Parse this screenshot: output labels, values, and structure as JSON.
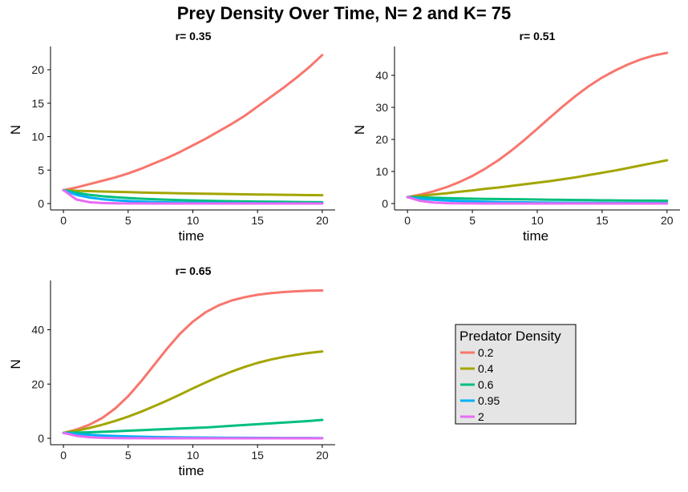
{
  "title": "Prey Density Over Time, N= 2 and K= 75",
  "chart_data": [
    {
      "type": "line",
      "panel_title": "r= 0.35",
      "xlabel": "time",
      "ylabel": "N",
      "xlim": [
        0,
        20
      ],
      "ylim": [
        0,
        23
      ],
      "xticks": [
        0,
        5,
        10,
        15,
        20
      ],
      "yticks": [
        0,
        5,
        10,
        15,
        20
      ],
      "x": [
        0,
        1,
        2,
        3,
        4,
        5,
        6,
        7,
        8,
        9,
        10,
        11,
        12,
        13,
        14,
        15,
        16,
        17,
        18,
        19,
        20
      ],
      "series": [
        {
          "name": "0.2",
          "values": [
            2.0,
            2.4,
            2.9,
            3.4,
            3.9,
            4.5,
            5.2,
            6.0,
            6.8,
            7.7,
            8.7,
            9.7,
            10.8,
            11.9,
            13.1,
            14.5,
            15.9,
            17.3,
            18.8,
            20.4,
            22.2
          ]
        },
        {
          "name": "0.4",
          "values": [
            2.0,
            1.9,
            1.85,
            1.8,
            1.75,
            1.7,
            1.65,
            1.6,
            1.57,
            1.53,
            1.5,
            1.47,
            1.44,
            1.41,
            1.38,
            1.35,
            1.33,
            1.3,
            1.28,
            1.26,
            1.24
          ]
        },
        {
          "name": "0.6",
          "values": [
            2.0,
            1.6,
            1.3,
            1.1,
            0.95,
            0.82,
            0.72,
            0.64,
            0.57,
            0.51,
            0.46,
            0.42,
            0.38,
            0.35,
            0.32,
            0.29,
            0.27,
            0.25,
            0.23,
            0.21,
            0.2
          ]
        },
        {
          "name": "0.95",
          "values": [
            2.0,
            1.3,
            0.9,
            0.65,
            0.48,
            0.37,
            0.29,
            0.23,
            0.18,
            0.15,
            0.12,
            0.1,
            0.08,
            0.07,
            0.06,
            0.05,
            0.04,
            0.04,
            0.03,
            0.03,
            0.02
          ]
        },
        {
          "name": "2",
          "values": [
            2.0,
            0.6,
            0.2,
            0.07,
            0.03,
            0.01,
            0.01,
            0,
            0,
            0,
            0,
            0,
            0,
            0,
            0,
            0,
            0,
            0,
            0,
            0,
            0
          ]
        }
      ]
    },
    {
      "type": "line",
      "panel_title": "r= 0.51",
      "xlabel": "time",
      "ylabel": "N",
      "xlim": [
        0,
        20
      ],
      "ylim": [
        0,
        48
      ],
      "xticks": [
        0,
        5,
        10,
        15,
        20
      ],
      "yticks": [
        0,
        10,
        20,
        30,
        40
      ],
      "x": [
        0,
        1,
        2,
        3,
        4,
        5,
        6,
        7,
        8,
        9,
        10,
        11,
        12,
        13,
        14,
        15,
        16,
        17,
        18,
        19,
        20
      ],
      "series": [
        {
          "name": "0.2",
          "values": [
            2.0,
            2.8,
            3.8,
            5.1,
            6.7,
            8.6,
            10.9,
            13.5,
            16.5,
            19.8,
            23.3,
            26.9,
            30.4,
            33.7,
            36.7,
            39.3,
            41.5,
            43.4,
            45.0,
            46.2,
            47.0
          ]
        },
        {
          "name": "0.4",
          "values": [
            2.0,
            2.4,
            2.8,
            3.2,
            3.7,
            4.1,
            4.6,
            5.0,
            5.5,
            6.0,
            6.5,
            7.0,
            7.6,
            8.2,
            8.9,
            9.6,
            10.3,
            11.1,
            11.9,
            12.7,
            13.5
          ]
        },
        {
          "name": "0.6",
          "values": [
            2.0,
            1.9,
            1.8,
            1.7,
            1.6,
            1.5,
            1.45,
            1.4,
            1.35,
            1.3,
            1.25,
            1.2,
            1.15,
            1.1,
            1.05,
            1.0,
            0.98,
            0.95,
            0.92,
            0.9,
            0.88
          ]
        },
        {
          "name": "0.95",
          "values": [
            2.0,
            1.5,
            1.2,
            0.95,
            0.78,
            0.65,
            0.55,
            0.47,
            0.41,
            0.36,
            0.32,
            0.28,
            0.25,
            0.22,
            0.2,
            0.18,
            0.16,
            0.15,
            0.14,
            0.13,
            0.12
          ]
        },
        {
          "name": "2",
          "values": [
            2.0,
            0.8,
            0.3,
            0.12,
            0.05,
            0.02,
            0.01,
            0,
            0,
            0,
            0,
            0,
            0,
            0,
            0,
            0,
            0,
            0,
            0,
            0,
            0
          ]
        }
      ]
    },
    {
      "type": "line",
      "panel_title": "r= 0.65",
      "xlabel": "time",
      "ylabel": "N",
      "xlim": [
        0,
        20
      ],
      "ylim": [
        0,
        57
      ],
      "xticks": [
        0,
        5,
        10,
        15,
        20
      ],
      "yticks": [
        0,
        20,
        40
      ],
      "x": [
        0,
        1,
        2,
        3,
        4,
        5,
        6,
        7,
        8,
        9,
        10,
        11,
        12,
        13,
        14,
        15,
        16,
        17,
        18,
        19,
        20
      ],
      "series": [
        {
          "name": "0.2",
          "values": [
            2.0,
            3.2,
            5.0,
            7.5,
            11.0,
            15.5,
            21.0,
            27.0,
            33.0,
            38.5,
            43.0,
            46.5,
            49.0,
            50.8,
            52.0,
            52.9,
            53.5,
            53.9,
            54.2,
            54.4,
            54.5
          ]
        },
        {
          "name": "0.4",
          "values": [
            2.0,
            2.8,
            3.8,
            5.0,
            6.4,
            8.0,
            9.8,
            11.8,
            13.9,
            16.1,
            18.4,
            20.6,
            22.7,
            24.6,
            26.3,
            27.8,
            29.0,
            30.0,
            30.8,
            31.5,
            32.0
          ]
        },
        {
          "name": "0.6",
          "values": [
            2.0,
            2.1,
            2.2,
            2.4,
            2.6,
            2.8,
            3.0,
            3.2,
            3.4,
            3.6,
            3.8,
            4.0,
            4.3,
            4.6,
            4.9,
            5.2,
            5.5,
            5.8,
            6.1,
            6.4,
            6.8
          ]
        },
        {
          "name": "0.95",
          "values": [
            2.0,
            1.6,
            1.3,
            1.05,
            0.85,
            0.7,
            0.58,
            0.48,
            0.4,
            0.34,
            0.29,
            0.25,
            0.22,
            0.19,
            0.17,
            0.15,
            0.13,
            0.12,
            0.11,
            0.1,
            0.09
          ]
        },
        {
          "name": "2",
          "values": [
            2.0,
            0.9,
            0.4,
            0.18,
            0.08,
            0.04,
            0.02,
            0.01,
            0,
            0,
            0,
            0,
            0,
            0,
            0,
            0,
            0,
            0,
            0,
            0,
            0
          ]
        }
      ]
    }
  ],
  "legend": {
    "title": "Predator Density",
    "placement": "bottom-right",
    "items": [
      {
        "label": "0.2",
        "color": "#F8766D"
      },
      {
        "label": "0.4",
        "color": "#A3A500"
      },
      {
        "label": "0.6",
        "color": "#00BF7D"
      },
      {
        "label": "0.95",
        "color": "#00B0F6"
      },
      {
        "label": "2",
        "color": "#E76BF3"
      }
    ]
  },
  "colors": {
    "0.2": "#F8766D",
    "0.4": "#A3A500",
    "0.6": "#00BF7D",
    "0.95": "#00B0F6",
    "2": "#E76BF3"
  }
}
